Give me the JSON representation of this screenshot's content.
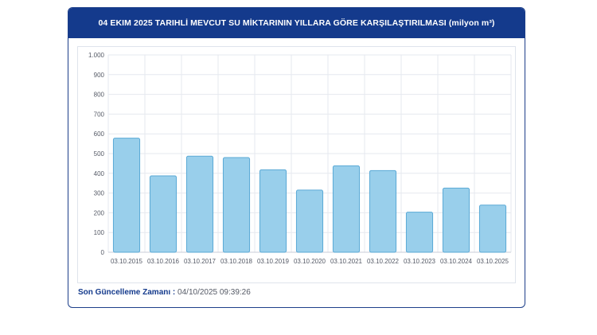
{
  "header": {
    "title": "04 EKIM 2025 TARIHLİ MEVCUT SU MİKTARININ YILLARA GÖRE KARŞILAŞTIRILMASI (milyon m³)"
  },
  "footer": {
    "label": "Son Güncelleme Zamanı :",
    "value": "04/10/2025 09:39:26"
  },
  "colors": {
    "bar_fill": "#99cfeb",
    "bar_stroke": "#5aa9d6",
    "header_bg": "#143a8c",
    "grid": "#e6e9ef"
  },
  "chart_data": {
    "type": "bar",
    "categories": [
      "03.10.2015",
      "03.10.2016",
      "03.10.2017",
      "03.10.2018",
      "03.10.2019",
      "03.10.2020",
      "03.10.2021",
      "03.10.2022",
      "03.10.2023",
      "03.10.2024",
      "03.10.2025"
    ],
    "values": [
      578,
      387,
      487,
      480,
      418,
      315,
      438,
      414,
      203,
      325,
      239
    ],
    "ylim": [
      0,
      1000
    ],
    "yticks": [
      0,
      100,
      200,
      300,
      400,
      500,
      600,
      700,
      800,
      900,
      1000
    ],
    "ytick_labels": [
      "0",
      "100",
      "200",
      "300",
      "400",
      "500",
      "600",
      "700",
      "800",
      "900",
      "1.000"
    ],
    "grid": true,
    "legend": "none"
  }
}
